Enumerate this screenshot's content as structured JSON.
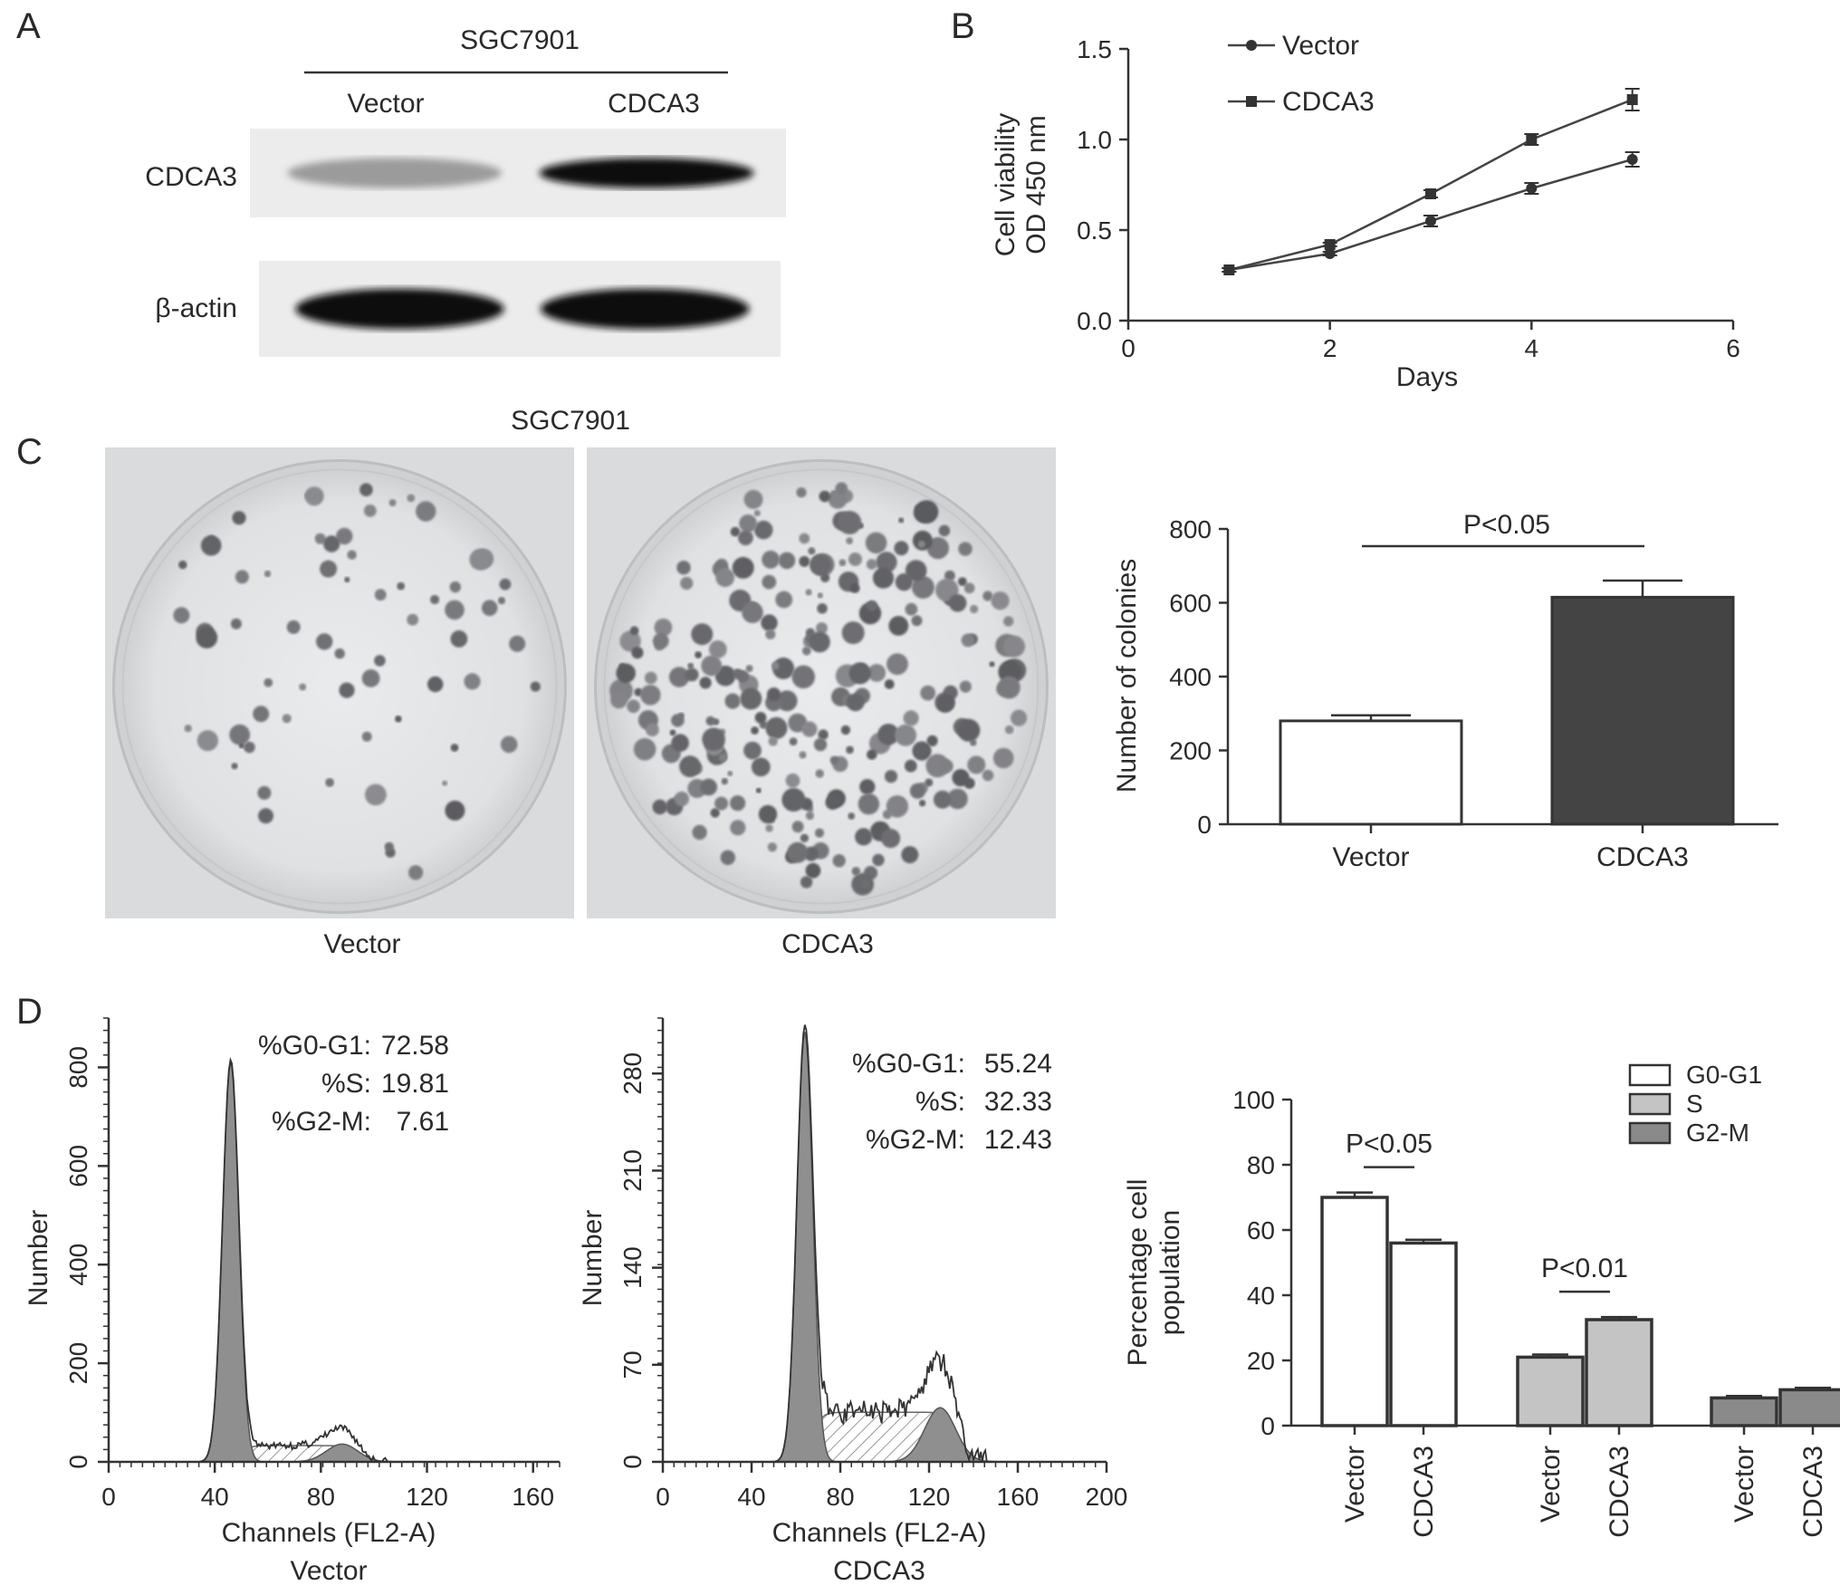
{
  "figure": {
    "panels": [
      "A",
      "B",
      "C",
      "D"
    ]
  },
  "panelA": {
    "cell_line": "SGC7901",
    "lanes": [
      "Vector",
      "CDCA3"
    ],
    "blots": [
      {
        "name": "CDCA3",
        "intensities": [
          0.35,
          0.95
        ]
      },
      {
        "name": "β-actin",
        "intensities": [
          0.95,
          0.95
        ]
      }
    ]
  },
  "panelC": {
    "cell_line": "SGC7901",
    "dish_labels": [
      "Vector",
      "CDCA3"
    ]
  },
  "panelD": {
    "histograms": [
      {
        "caption": "Vector",
        "stats": [
          {
            "label": "%G0-G1:",
            "value": "72.58"
          },
          {
            "label": "%S:",
            "value": "19.81"
          },
          {
            "label": "%G2-M:",
            "value": "7.61"
          }
        ]
      },
      {
        "caption": "CDCA3",
        "stats": [
          {
            "label": "%G0-G1:",
            "value": "55.24"
          },
          {
            "label": "%S:",
            "value": "32.33"
          },
          {
            "label": "%G2-M:",
            "value": "12.43"
          }
        ]
      }
    ]
  },
  "chart_data": [
    {
      "id": "B",
      "type": "line",
      "xlabel": "Days",
      "ylabel": [
        "Cell viability",
        "OD 450 nm"
      ],
      "xlim": [
        0,
        6
      ],
      "ylim": [
        0,
        1.5
      ],
      "xticks": [
        "0",
        "2",
        "4",
        "6"
      ],
      "yticks": [
        "0.0",
        "0.5",
        "1.0",
        "1.5"
      ],
      "legend_position": "top-left",
      "x": [
        1,
        2,
        3,
        4,
        5
      ],
      "series": [
        {
          "name": "Vector",
          "marker": "circle",
          "values": [
            0.28,
            0.37,
            0.55,
            0.73,
            0.89
          ],
          "errors": [
            0.01,
            0.01,
            0.03,
            0.03,
            0.04
          ]
        },
        {
          "name": "CDCA3",
          "marker": "square",
          "values": [
            0.28,
            0.42,
            0.7,
            1.0,
            1.22
          ],
          "errors": [
            0.01,
            0.01,
            0.02,
            0.03,
            0.06
          ]
        }
      ]
    },
    {
      "id": "C",
      "type": "bar",
      "ylabel": "Number of colonies",
      "ylim": [
        0,
        800
      ],
      "yticks": [
        "0",
        "200",
        "400",
        "600",
        "800"
      ],
      "categories": [
        "Vector",
        "CDCA3"
      ],
      "values": [
        280,
        615
      ],
      "errors": [
        15,
        45
      ],
      "colors": [
        "#ffffff",
        "#444444"
      ],
      "significance": "P<0.05"
    },
    {
      "id": "D-hist-vector",
      "type": "area",
      "xlabel": "Channels (FL2-A)",
      "ylabel": "Number",
      "xlim": [
        0,
        170
      ],
      "ylim": [
        0,
        900
      ],
      "xticks": [
        "0",
        "40",
        "80",
        "120",
        "160"
      ],
      "yticks": [
        "0",
        "200",
        "400",
        "600",
        "800"
      ],
      "g1_peak": 46,
      "g1_height": 810,
      "g2_peak": 88,
      "g2_height": 60
    },
    {
      "id": "D-hist-cdca3",
      "type": "area",
      "xlabel": "Channels (FL2-A)",
      "ylabel": "Number",
      "xlim": [
        0,
        200
      ],
      "ylim": [
        0,
        320
      ],
      "xticks": [
        "0",
        "40",
        "80",
        "120",
        "160",
        "200"
      ],
      "yticks": [
        "0",
        "70",
        "140",
        "210",
        "280"
      ],
      "g1_peak": 64,
      "g1_height": 310,
      "g2_peak": 125,
      "g2_height": 65
    },
    {
      "id": "D-bar",
      "type": "bar",
      "ylabel": [
        "Percentage cell",
        "population"
      ],
      "ylim": [
        0,
        100
      ],
      "yticks": [
        "0",
        "20",
        "40",
        "60",
        "80",
        "100"
      ],
      "groups": [
        "G0-G1",
        "S",
        "G2-M"
      ],
      "categories": [
        "Vector",
        "CDCA3"
      ],
      "series": [
        {
          "name": "G0-G1",
          "color": "#ffffff",
          "values": [
            70,
            56
          ],
          "errors": [
            1.5,
            1.0
          ]
        },
        {
          "name": "S",
          "color": "#c4c4c4",
          "values": [
            21,
            32.5
          ],
          "errors": [
            0.8,
            0.8
          ]
        },
        {
          "name": "G2-M",
          "color": "#8a8a8a",
          "values": [
            8.5,
            11
          ],
          "errors": [
            0.6,
            0.6
          ]
        }
      ],
      "significance": [
        "P<0.05",
        "P<0.01",
        ""
      ],
      "legend_position": "top-right"
    }
  ]
}
